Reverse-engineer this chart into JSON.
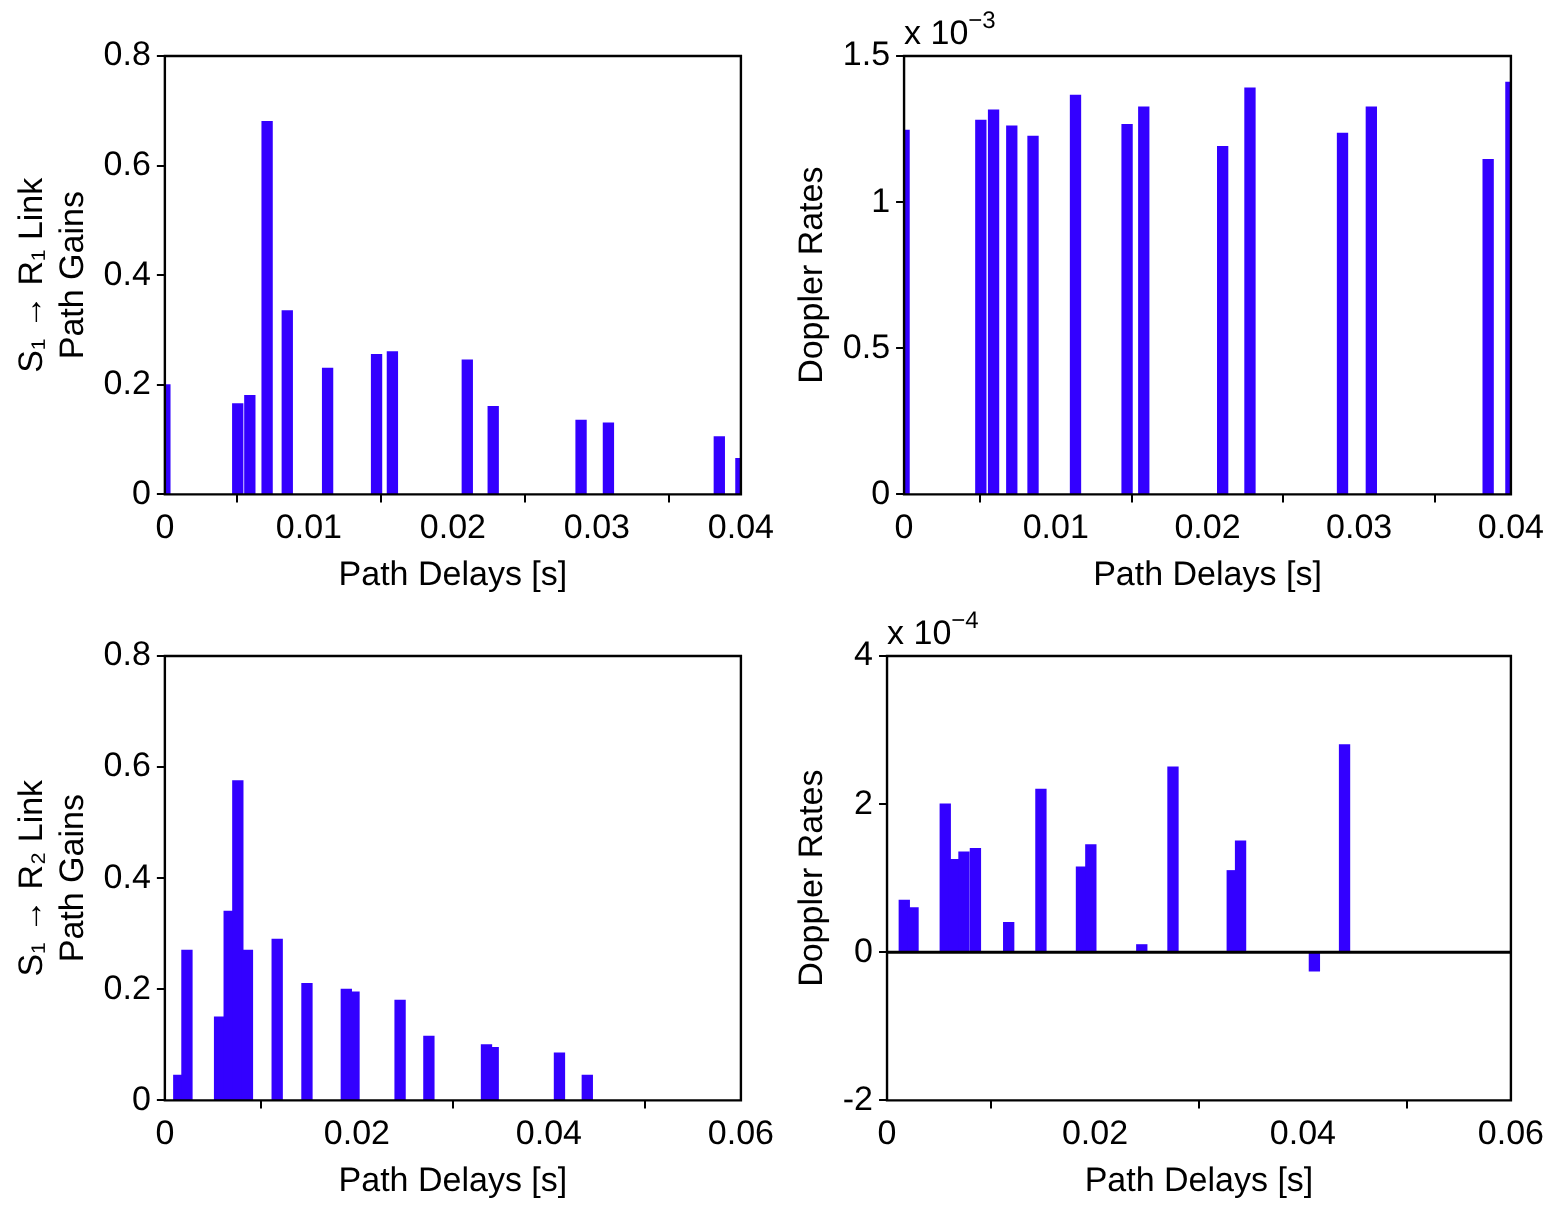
{
  "chart_data": [
    {
      "type": "bar",
      "xlabel": "Path Delays [s]",
      "ylabel": "S₁ → R₁ Link\nPath Gains",
      "color": "#3300ff",
      "x": [
        0,
        0.00506,
        0.0059,
        0.0071,
        0.0085,
        0.0113,
        0.0147,
        0.0158,
        0.021,
        0.0228,
        0.0289,
        0.0308,
        0.0385,
        0.04
      ],
      "values": [
        0.2,
        0.165,
        0.18,
        0.68,
        0.335,
        0.23,
        0.255,
        0.26,
        0.245,
        0.16,
        0.135,
        0.13,
        0.105,
        0.065
      ],
      "xlim": [
        0,
        0.04
      ],
      "xticks": [
        0,
        0.01,
        0.02,
        0.03,
        0.04
      ],
      "ylim": [
        0,
        0.8
      ],
      "yticks": [
        0,
        0.2,
        0.4,
        0.6,
        0.8
      ]
    },
    {
      "type": "bar",
      "xlabel": "Path Delays [s]",
      "ylabel": "Doppler Rates",
      "color": "#3300ff",
      "annotations": [
        "x 10$^{−3}$"
      ],
      "x": [
        0,
        0.00506,
        0.0059,
        0.0071,
        0.0085,
        0.0113,
        0.0147,
        0.0158,
        0.021,
        0.0228,
        0.0289,
        0.0308,
        0.0385,
        0.04
      ],
      "values": [
        1.245,
        1.28,
        1.315,
        1.26,
        1.225,
        1.365,
        1.265,
        1.325,
        1.19,
        1.39,
        1.235,
        1.325,
        1.145,
        1.41
      ],
      "xlim": [
        0,
        0.04
      ],
      "xticks": [
        0,
        0.01,
        0.02,
        0.03,
        0.04
      ],
      "ylim": [
        0,
        1.5
      ],
      "yticks": [
        0,
        0.5,
        1,
        1.5
      ]
    },
    {
      "type": "bar",
      "xlabel": "Path Delays [s]",
      "ylabel": "S₁ → R₂ Link\nPath Gains",
      "color": "#3300ff",
      "x": [
        0.00145,
        0.0023,
        0.0057,
        0.0067,
        0.0076,
        0.0086,
        0.0117,
        0.0148,
        0.0189,
        0.0197,
        0.0245,
        0.0275,
        0.0335,
        0.0342,
        0.0411,
        0.044
      ],
      "values": [
        0.045,
        0.27,
        0.15,
        0.34,
        0.575,
        0.27,
        0.29,
        0.21,
        0.2,
        0.195,
        0.18,
        0.115,
        0.1,
        0.095,
        0.085,
        0.045
      ],
      "xlim": [
        0,
        0.06
      ],
      "xticks": [
        0,
        0.02,
        0.04,
        0.06
      ],
      "ylim": [
        0,
        0.8
      ],
      "yticks": [
        0,
        0.2,
        0.4,
        0.6,
        0.8
      ]
    },
    {
      "type": "bar",
      "xlabel": "Path Delays [s]",
      "ylabel": "Doppler Rates",
      "color": "#3300ff",
      "annotations": [
        "x 10$^{−4}$"
      ],
      "x": [
        0.00166,
        0.0025,
        0.0056,
        0.0065,
        0.0074,
        0.0085,
        0.0117,
        0.0148,
        0.0187,
        0.0196,
        0.0245,
        0.0275,
        0.0332,
        0.034,
        0.0411,
        0.044
      ],
      "values": [
        0.7,
        0.6,
        2.0,
        1.25,
        1.35,
        1.4,
        0.4,
        2.2,
        1.15,
        1.45,
        0.1,
        2.5,
        1.1,
        1.5,
        -0.25,
        2.8
      ],
      "xlim": [
        0,
        0.06
      ],
      "xticks": [
        0,
        0.02,
        0.04,
        0.06
      ],
      "ylim": [
        -2,
        4
      ],
      "yticks": [
        -2,
        0,
        2,
        4
      ],
      "ref_lines": [
        {
          "axis": "y",
          "value": 0,
          "color": "#000000"
        }
      ]
    }
  ]
}
